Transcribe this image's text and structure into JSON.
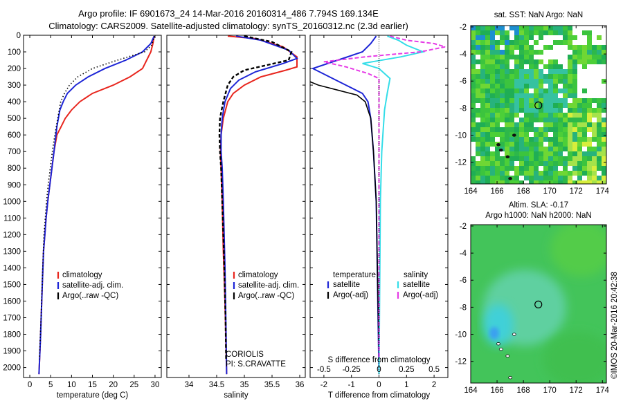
{
  "header": {
    "title_line1": "Argo profile: IF 6901673_24 14-Mar-2016 20160314_486 7.794S 169.134E",
    "title_line2": "Climatology: CARS2009. Satellite-adjusted climatology: synTS_20160312.nc (2.3d earlier)"
  },
  "stamp": "©IMOS 20-Mar-2016 20:42:38",
  "colors": {
    "climatology": "#e8251d",
    "satellite": "#1c24d6",
    "argo": "#000000",
    "satellite_salinity": "#33dde8",
    "argo_salinity_adj": "#e63ae6"
  },
  "chart_data": [
    {
      "id": "temperature",
      "type": "line",
      "xlabel": "temperature (deg C)",
      "ylabel": "",
      "xlim": [
        -1.5,
        31.5
      ],
      "ylim": [
        2060,
        0
      ],
      "xticks": [
        0,
        5,
        10,
        15,
        20,
        25,
        30
      ],
      "yticks": [
        0,
        100,
        200,
        300,
        400,
        500,
        600,
        700,
        800,
        900,
        1000,
        1100,
        1200,
        1300,
        1400,
        1500,
        1600,
        1700,
        1800,
        1900,
        2000
      ],
      "legend": [
        "climatology",
        "satellite-adj. clim.",
        "Argo(..raw -QC)"
      ],
      "series": [
        {
          "name": "climatology",
          "color": "#e8251d",
          "x": [
            29.8,
            29.5,
            29.0,
            28.0,
            27.0,
            24.0,
            20.0,
            15.0,
            12.0,
            10.0,
            8.5,
            7.5,
            6.5,
            5.8,
            5.3,
            4.8,
            4.3,
            3.9,
            3.6,
            3.3,
            3.0,
            2.6,
            2.2
          ],
          "y": [
            5,
            50,
            100,
            150,
            200,
            250,
            300,
            350,
            400,
            450,
            500,
            550,
            600,
            700,
            800,
            900,
            1000,
            1100,
            1200,
            1300,
            1500,
            1800,
            2040
          ]
        },
        {
          "name": "satellite-adj. clim.",
          "color": "#1c24d6",
          "x": [
            29.8,
            29.0,
            27.0,
            23.0,
            18.0,
            14.0,
            11.0,
            9.0,
            8.0,
            7.2,
            6.5,
            5.8,
            5.3,
            4.8,
            4.3,
            3.9,
            3.6,
            3.3,
            3.0,
            2.6,
            2.2
          ],
          "y": [
            5,
            50,
            100,
            150,
            200,
            250,
            300,
            350,
            400,
            450,
            550,
            700,
            800,
            900,
            1000,
            1100,
            1200,
            1300,
            1500,
            1800,
            2040
          ]
        },
        {
          "name": "Argo(..raw -QC)",
          "color": "#000000",
          "x": [
            29.9,
            29.2,
            27.5,
            21.0,
            15.0,
            11.5,
            9.5,
            8.3,
            7.4,
            6.7,
            6.0,
            5.4,
            4.9,
            4.4,
            4.0,
            3.7,
            3.4,
            3.1,
            2.7,
            2.3
          ],
          "y": [
            5,
            60,
            100,
            150,
            200,
            250,
            300,
            350,
            400,
            500,
            600,
            700,
            800,
            900,
            1000,
            1100,
            1200,
            1400,
            1700,
            1950
          ]
        }
      ]
    },
    {
      "id": "salinity",
      "type": "line",
      "xlabel": "salinity",
      "ylabel": "",
      "xlim": [
        33.6,
        36.1
      ],
      "ylim": [
        2060,
        0
      ],
      "xticks": [
        34,
        34.5,
        35,
        35.5,
        36
      ],
      "xticklabels": [
        "34",
        "34.5",
        "35",
        "35.5",
        "36"
      ],
      "legend": [
        "climatology",
        "satellite-adj. clim.",
        "Argo(..raw -QC)"
      ],
      "annotation": [
        "CORIOLIS",
        "PI: S.CRAVATTE"
      ],
      "series": [
        {
          "name": "climatology",
          "color": "#e8251d",
          "x": [
            34.7,
            35.2,
            35.7,
            35.95,
            35.95,
            35.75,
            35.3,
            35.0,
            34.8,
            34.7,
            34.62,
            34.58,
            34.57,
            34.58,
            34.6,
            34.62,
            34.65,
            34.67,
            34.68
          ],
          "y": [
            5,
            20,
            70,
            130,
            190,
            210,
            250,
            300,
            350,
            400,
            500,
            600,
            700,
            800,
            1000,
            1300,
            1600,
            1900,
            2040
          ]
        },
        {
          "name": "satellite-adj. clim.",
          "color": "#1c24d6",
          "x": [
            34.85,
            35.3,
            35.8,
            35.95,
            35.7,
            35.2,
            34.9,
            34.75,
            34.65,
            34.6,
            34.58,
            34.58,
            34.6,
            34.62,
            34.65,
            34.67,
            34.68
          ],
          "y": [
            5,
            30,
            90,
            140,
            170,
            220,
            270,
            320,
            400,
            500,
            600,
            700,
            800,
            1000,
            1400,
            1800,
            2040
          ]
        },
        {
          "name": "Argo(..raw -QC)",
          "color": "#000000",
          "x": [
            35.0,
            35.5,
            35.85,
            35.8,
            35.4,
            35.0,
            34.8,
            34.7,
            34.62,
            34.56,
            34.55,
            34.56,
            34.58,
            34.6,
            34.63,
            34.66,
            34.67
          ],
          "y": [
            5,
            40,
            100,
            150,
            180,
            210,
            250,
            300,
            400,
            500,
            600,
            700,
            800,
            1000,
            1300,
            1700,
            1950
          ]
        }
      ]
    },
    {
      "id": "difference",
      "type": "line",
      "xlabel": "T difference from climatology",
      "xlabel_top": "S difference from climatology",
      "xlim": [
        -2.5,
        2.5
      ],
      "ylim": [
        2060,
        0
      ],
      "xticks": [
        -2,
        -1,
        0,
        1,
        2
      ],
      "xticklabels": [
        "-2",
        "-1",
        "0",
        "1",
        "2"
      ],
      "xticks_top": [
        -2,
        -1,
        0,
        1,
        2
      ],
      "xticklabels_top": [
        "-0.5",
        "-0.25",
        "0",
        "0.25",
        "0.5"
      ],
      "legend_temperature": {
        "title": "temperature",
        "entries": [
          "satellite",
          "Argo(-adj)"
        ]
      },
      "legend_salinity": {
        "title": "salinity",
        "entries": [
          "satellite",
          "Argo(-adj)"
        ]
      },
      "series": [
        {
          "name": "temperature satellite",
          "color": "#1c24d6",
          "x": [
            -0.1,
            -0.3,
            -0.6,
            -1.5,
            -2.4,
            -1.2,
            -0.6,
            -0.4,
            -0.3,
            -0.2,
            -0.1,
            0.0
          ],
          "y": [
            5,
            50,
            100,
            150,
            200,
            300,
            350,
            400,
            500,
            700,
            1000,
            2040
          ]
        },
        {
          "name": "temperature Argo(-adj)",
          "color": "#000000",
          "x": [
            -2.5,
            -2.2,
            -1.5,
            -0.8,
            -0.5,
            -0.3,
            -0.2,
            -0.1,
            0.0
          ],
          "y": [
            280,
            300,
            330,
            360,
            400,
            500,
            700,
            1000,
            1950
          ]
        },
        {
          "name": "salinity satellite",
          "color": "#33dde8",
          "x": [
            0.3,
            0.7,
            1.0,
            1.6,
            0.8,
            -0.6,
            0.0,
            0.4,
            0.3,
            0.2,
            0.1,
            0.05,
            0.0
          ],
          "y": [
            5,
            30,
            60,
            100,
            130,
            170,
            200,
            260,
            350,
            450,
            700,
            1000,
            2040
          ]
        },
        {
          "name": "salinity Argo(-adj)",
          "color": "#e63ae6",
          "x": [
            0.4,
            1.0,
            2.0,
            2.4,
            1.5,
            -0.5,
            -2.0,
            -1.2,
            -0.4,
            0.0,
            0.0
          ],
          "y": [
            5,
            30,
            50,
            70,
            100,
            130,
            160,
            190,
            230,
            260,
            1950
          ]
        }
      ]
    },
    {
      "id": "sst_map",
      "type": "heatmap",
      "title": "sat. SST: NaN Argo: NaN",
      "xlim": [
        164,
        174.3
      ],
      "ylim": [
        -13.6,
        -1.9
      ],
      "xticks": [
        164,
        166,
        168,
        170,
        172,
        174
      ],
      "yticks": [
        -2,
        -4,
        -6,
        -8,
        -10,
        -12
      ],
      "marker": {
        "lon": 169.134,
        "lat": -7.794
      }
    },
    {
      "id": "sla_map",
      "type": "heatmap",
      "title": "Altim. SLA: -0.17",
      "subtitle": "Argo h1000: NaN h2000: NaN",
      "xlim": [
        164,
        174.3
      ],
      "ylim": [
        -13.6,
        -1.9
      ],
      "xticks": [
        164,
        166,
        168,
        170,
        172,
        174
      ],
      "yticks": [
        -2,
        -4,
        -6,
        -8,
        -10,
        -12
      ],
      "marker": {
        "lon": 169.134,
        "lat": -7.794
      }
    }
  ]
}
